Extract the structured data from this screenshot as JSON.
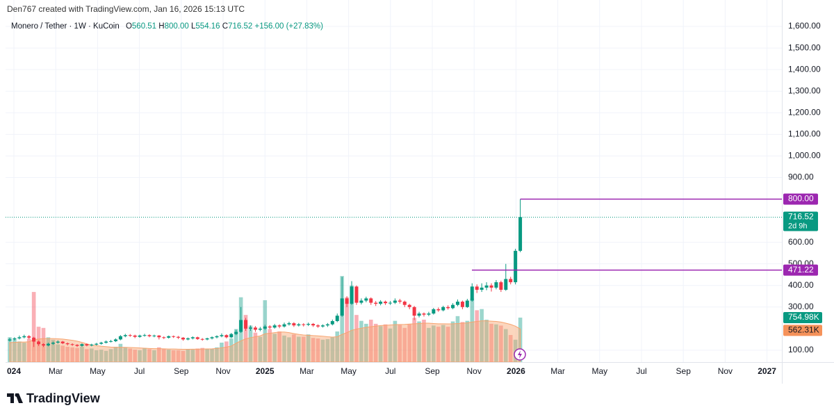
{
  "header": "Den767 created with TradingView.com, Jan 16, 2026 15:13 UTC",
  "footer": "TradingView",
  "chart_data": {
    "type": "candlestick",
    "title": "Monero / Tether · 1W · KuCoin",
    "ohlc_legend": {
      "o_label": "O",
      "o": "560.51",
      "h_label": "H",
      "h": "800.00",
      "l_label": "L",
      "l": "554.16",
      "c_label": "C",
      "c": "716.52",
      "change": "+156.00 (+27.83%)"
    },
    "x": [
      "2024-01",
      "2024-01",
      "2024-01",
      "2024-01",
      "2024-01",
      "2024-02",
      "2024-02",
      "2024-02",
      "2024-02",
      "2024-03",
      "2024-03",
      "2024-03",
      "2024-03",
      "2024-04",
      "2024-04",
      "2024-04",
      "2024-04",
      "2024-04",
      "2024-05",
      "2024-05",
      "2024-05",
      "2024-05",
      "2024-06",
      "2024-06",
      "2024-06",
      "2024-06",
      "2024-07",
      "2024-07",
      "2024-07",
      "2024-07",
      "2024-07",
      "2024-08",
      "2024-08",
      "2024-08",
      "2024-08",
      "2024-09",
      "2024-09",
      "2024-09",
      "2024-09",
      "2024-09",
      "2024-10",
      "2024-10",
      "2024-10",
      "2024-10",
      "2024-11",
      "2024-11",
      "2024-11",
      "2024-11",
      "2024-12",
      "2024-12",
      "2024-12",
      "2024-12",
      "2024-12",
      "2025-01",
      "2025-01",
      "2025-01",
      "2025-01",
      "2025-02",
      "2025-02",
      "2025-02",
      "2025-02",
      "2025-03",
      "2025-03",
      "2025-03",
      "2025-03",
      "2025-03",
      "2025-04",
      "2025-04",
      "2025-04",
      "2025-04",
      "2025-05",
      "2025-05",
      "2025-05",
      "2025-05",
      "2025-06",
      "2025-06",
      "2025-06",
      "2025-06",
      "2025-06",
      "2025-07",
      "2025-07",
      "2025-07",
      "2025-07",
      "2025-08",
      "2025-08",
      "2025-08",
      "2025-08",
      "2025-09",
      "2025-09",
      "2025-09",
      "2025-09",
      "2025-09",
      "2025-10",
      "2025-10",
      "2025-10",
      "2025-10",
      "2025-11",
      "2025-11",
      "2025-11",
      "2025-11",
      "2025-12",
      "2025-12",
      "2025-12",
      "2025-12",
      "2025-12",
      "2026-01",
      "2026-01"
    ],
    "open": [
      145,
      150,
      155,
      160,
      165,
      158,
      140,
      128,
      122,
      130,
      135,
      140,
      132,
      128,
      125,
      120,
      128,
      122,
      126,
      130,
      135,
      140,
      142,
      150,
      165,
      170,
      168,
      162,
      168,
      170,
      165,
      168,
      160,
      158,
      165,
      162,
      158,
      150,
      155,
      160,
      152,
      150,
      155,
      160,
      165,
      170,
      160,
      175,
      185,
      240,
      200,
      205,
      195,
      200,
      210,
      205,
      215,
      210,
      220,
      225,
      215,
      220,
      218,
      222,
      215,
      210,
      215,
      220,
      235,
      260,
      340,
      315,
      395,
      320,
      330,
      340,
      320,
      315,
      325,
      318,
      320,
      330,
      325,
      310,
      300,
      260,
      270,
      265,
      270,
      290,
      285,
      300,
      295,
      310,
      325,
      300,
      330,
      395,
      380,
      390,
      400,
      390,
      415,
      380,
      430,
      415,
      560.51
    ],
    "high": [
      158,
      160,
      168,
      172,
      170,
      162,
      145,
      132,
      135,
      140,
      146,
      143,
      136,
      132,
      128,
      132,
      131,
      130,
      134,
      139,
      145,
      148,
      155,
      170,
      176,
      175,
      172,
      172,
      176,
      174,
      172,
      170,
      164,
      168,
      168,
      166,
      161,
      159,
      164,
      163,
      156,
      158,
      164,
      169,
      178,
      174,
      180,
      195,
      300,
      250,
      215,
      212,
      208,
      218,
      216,
      222,
      220,
      228,
      232,
      230,
      226,
      225,
      228,
      226,
      220,
      220,
      226,
      242,
      270,
      440,
      350,
      420,
      400,
      340,
      348,
      345,
      328,
      332,
      330,
      328,
      340,
      338,
      330,
      315,
      305,
      278,
      275,
      278,
      296,
      298,
      306,
      308,
      318,
      335,
      330,
      338,
      410,
      405,
      410,
      415,
      410,
      425,
      422,
      500,
      440,
      570,
      800
    ],
    "low": [
      140,
      145,
      150,
      155,
      152,
      115,
      120,
      115,
      118,
      125,
      130,
      128,
      122,
      120,
      115,
      116,
      118,
      118,
      122,
      126,
      131,
      136,
      138,
      146,
      160,
      162,
      156,
      158,
      163,
      160,
      160,
      150,
      152,
      154,
      157,
      152,
      144,
      146,
      150,
      148,
      144,
      146,
      150,
      155,
      160,
      155,
      156,
      170,
      180,
      190,
      190,
      185,
      188,
      194,
      198,
      200,
      202,
      205,
      214,
      208,
      210,
      210,
      212,
      208,
      204,
      205,
      208,
      215,
      230,
      255,
      300,
      310,
      310,
      312,
      322,
      310,
      305,
      308,
      310,
      310,
      314,
      316,
      300,
      290,
      240,
      252,
      256,
      258,
      265,
      278,
      280,
      288,
      290,
      304,
      290,
      296,
      325,
      365,
      370,
      378,
      372,
      382,
      370,
      375,
      405,
      405,
      554.16
    ],
    "close": [
      150,
      155,
      160,
      165,
      158,
      140,
      128,
      122,
      130,
      135,
      140,
      132,
      128,
      125,
      120,
      128,
      122,
      126,
      130,
      135,
      140,
      142,
      150,
      165,
      170,
      168,
      162,
      168,
      170,
      165,
      168,
      160,
      158,
      165,
      162,
      158,
      150,
      155,
      160,
      152,
      150,
      155,
      160,
      165,
      170,
      160,
      175,
      185,
      240,
      200,
      205,
      195,
      200,
      210,
      205,
      215,
      210,
      220,
      225,
      215,
      220,
      218,
      222,
      215,
      210,
      215,
      220,
      235,
      260,
      340,
      315,
      395,
      320,
      330,
      340,
      320,
      315,
      325,
      318,
      320,
      330,
      325,
      310,
      300,
      260,
      270,
      265,
      270,
      290,
      285,
      300,
      295,
      310,
      325,
      300,
      330,
      395,
      380,
      390,
      400,
      390,
      415,
      380,
      430,
      415,
      560.51,
      716.52
    ],
    "up_color": "#089981",
    "down_color": "#f23645",
    "last_price_label": "716.52",
    "countdown": "2d 9h",
    "volume": {
      "values": [
        420,
        380,
        350,
        330,
        400,
        1190,
        600,
        580,
        420,
        380,
        300,
        280,
        260,
        250,
        240,
        260,
        220,
        230,
        200,
        210,
        190,
        220,
        260,
        310,
        250,
        230,
        210,
        200,
        240,
        220,
        200,
        250,
        230,
        210,
        200,
        200,
        190,
        220,
        210,
        230,
        240,
        220,
        230,
        250,
        330,
        350,
        400,
        560,
        1100,
        800,
        620,
        500,
        430,
        1050,
        560,
        480,
        520,
        450,
        420,
        470,
        430,
        430,
        470,
        410,
        400,
        380,
        390,
        420,
        520,
        1460,
        1100,
        1300,
        800,
        700,
        650,
        720,
        650,
        610,
        640,
        570,
        700,
        630,
        580,
        640,
        750,
        690,
        720,
        580,
        620,
        600,
        630,
        600,
        690,
        780,
        680,
        700,
        1080,
        880,
        900,
        720,
        650,
        640,
        620,
        560,
        460,
        380,
        754.98
      ],
      "last_label": "754.98K"
    },
    "volume_ma": {
      "values": [
        330,
        335,
        340,
        340,
        345,
        380,
        390,
        400,
        400,
        400,
        395,
        390,
        380,
        370,
        355,
        335,
        310,
        290,
        280,
        270,
        262,
        255,
        250,
        252,
        250,
        248,
        245,
        240,
        236,
        232,
        228,
        228,
        225,
        222,
        222,
        220,
        218,
        218,
        220,
        220,
        222,
        224,
        226,
        232,
        242,
        255,
        272,
        320,
        360,
        395,
        415,
        430,
        445,
        480,
        490,
        500,
        510,
        510,
        500,
        485,
        470,
        460,
        455,
        450,
        445,
        440,
        430,
        425,
        430,
        470,
        500,
        540,
        560,
        575,
        590,
        600,
        610,
        620,
        625,
        630,
        635,
        638,
        640,
        645,
        650,
        655,
        660,
        660,
        655,
        650,
        650,
        648,
        650,
        655,
        660,
        665,
        680,
        690,
        700,
        700,
        695,
        690,
        680,
        660,
        640,
        610,
        562.31
      ],
      "last_label": "562.31K",
      "color": "#f7a36e"
    },
    "levels": [
      {
        "value": 800,
        "label": "800.00",
        "color": "#9c27b0"
      },
      {
        "value": 471.22,
        "label": "471.22",
        "color": "#9c27b0"
      }
    ],
    "ylim": [
      45,
      1642
    ],
    "yticks": [
      {
        "value": 100,
        "label": "100.00"
      },
      {
        "value": 300,
        "label": "300.00"
      },
      {
        "value": 400,
        "label": "400.00"
      },
      {
        "value": 500,
        "label": "500.00"
      },
      {
        "value": 600,
        "label": "600.00"
      },
      {
        "value": 900,
        "label": "900.00"
      },
      {
        "value": 1000,
        "label": "1,000.00"
      },
      {
        "value": 1100,
        "label": "1,100.00"
      },
      {
        "value": 1200,
        "label": "1,200.00"
      },
      {
        "value": 1300,
        "label": "1,300.00"
      },
      {
        "value": 1400,
        "label": "1,400.00"
      },
      {
        "value": 1500,
        "label": "1,500.00"
      },
      {
        "value": 1600,
        "label": "1,600.00"
      }
    ],
    "xticks": [
      {
        "value": "2024-01",
        "label": "024"
      },
      {
        "value": "2024-03",
        "label": "Mar"
      },
      {
        "value": "2024-05",
        "label": "May"
      },
      {
        "value": "2024-07",
        "label": "Jul"
      },
      {
        "value": "2024-09",
        "label": "Sep"
      },
      {
        "value": "2024-11",
        "label": "Nov"
      },
      {
        "value": "2025-01",
        "label": "2025"
      },
      {
        "value": "2025-03",
        "label": "Mar"
      },
      {
        "value": "2025-05",
        "label": "May"
      },
      {
        "value": "2025-07",
        "label": "Jul"
      },
      {
        "value": "2025-09",
        "label": "Sep"
      },
      {
        "value": "2025-11",
        "label": "Nov"
      },
      {
        "value": "2026-01",
        "label": "2026"
      },
      {
        "value": "2026-03",
        "label": "Mar"
      },
      {
        "value": "2026-05",
        "label": "May"
      },
      {
        "value": "2026-07",
        "label": "Jul"
      },
      {
        "value": "2026-09",
        "label": "Sep"
      },
      {
        "value": "2026-11",
        "label": "Nov"
      },
      {
        "value": "2027-01",
        "label": "2027"
      }
    ],
    "grid": true
  }
}
